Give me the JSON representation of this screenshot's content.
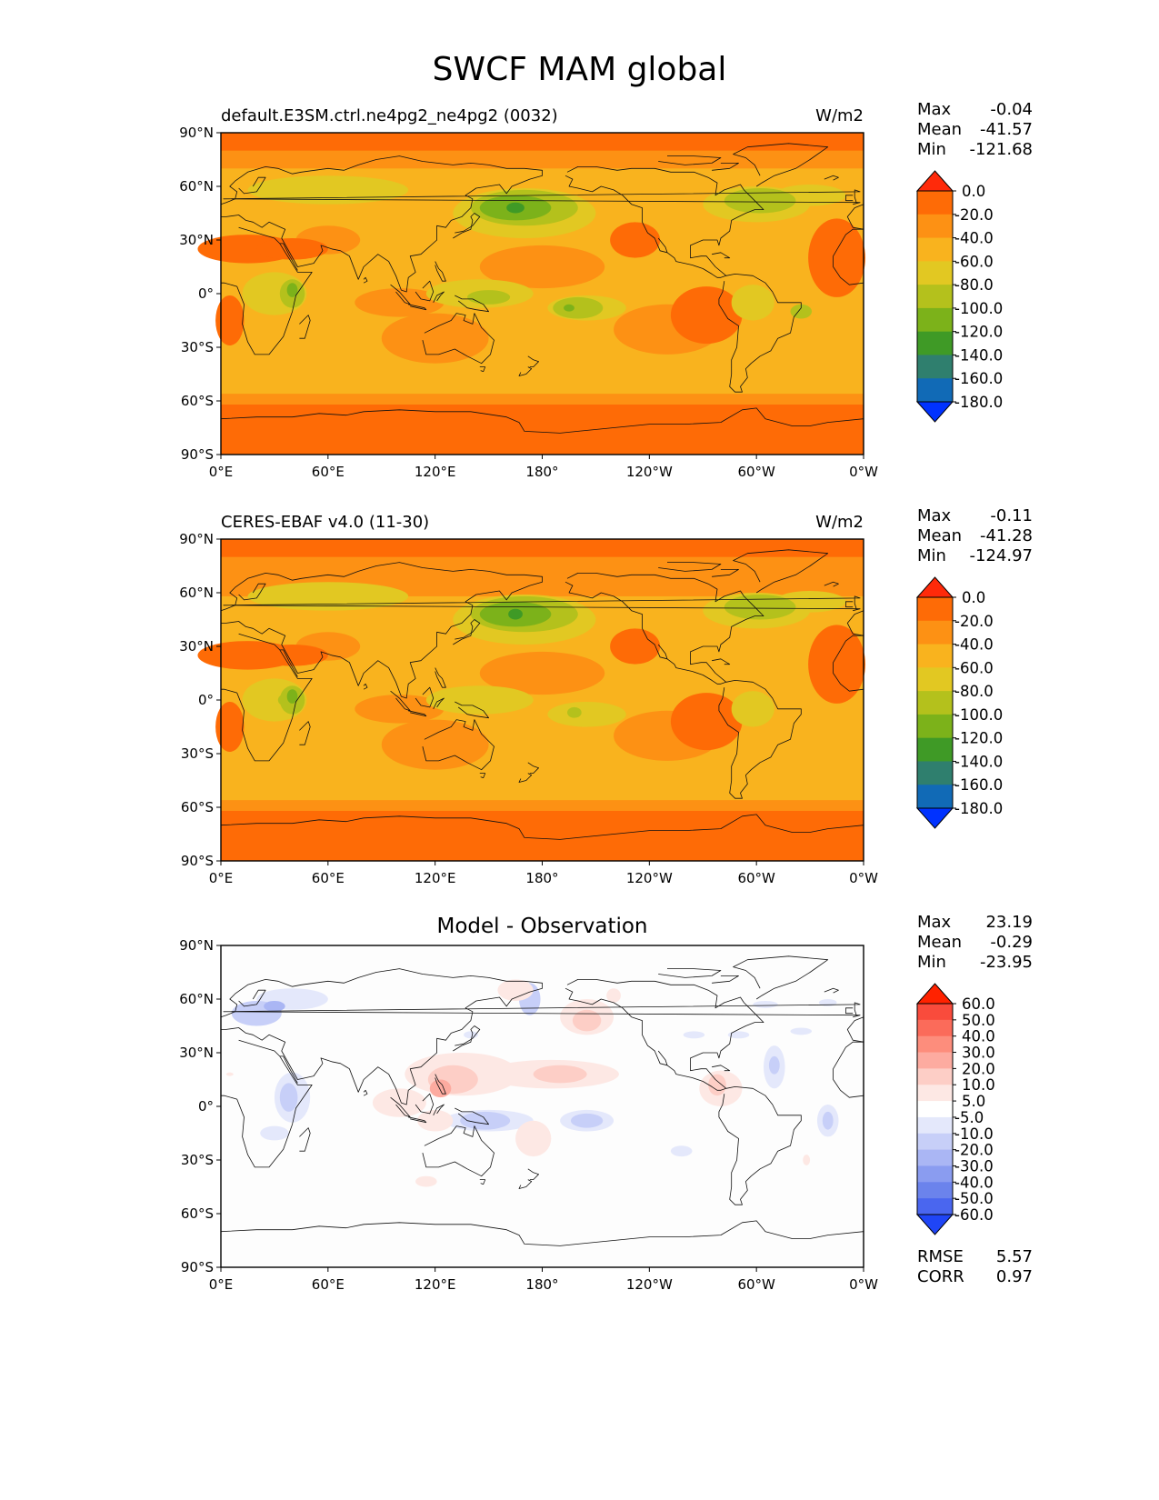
{
  "figure": {
    "title": "SWCF MAM global"
  },
  "panels": [
    {
      "id": "model",
      "left_title": "default.E3SM.ctrl.ne4pg2_ne4pg2 (0032)",
      "center_title": "",
      "units": "W/m2",
      "stats": [
        {
          "label": "Max",
          "value": "-0.04"
        },
        {
          "label": "Mean",
          "value": "-41.57"
        },
        {
          "label": "Min",
          "value": "-121.68"
        }
      ],
      "extra_stats": []
    },
    {
      "id": "obs",
      "left_title": "CERES-EBAF v4.0 (11-30)",
      "center_title": "",
      "units": "W/m2",
      "stats": [
        {
          "label": "Max",
          "value": "-0.11"
        },
        {
          "label": "Mean",
          "value": "-41.28"
        },
        {
          "label": "Min",
          "value": "-124.97"
        }
      ],
      "extra_stats": []
    },
    {
      "id": "diff",
      "left_title": "",
      "center_title": "Model - Observation",
      "units": "",
      "stats": [
        {
          "label": "Max",
          "value": "23.19"
        },
        {
          "label": "Mean",
          "value": "-0.29"
        },
        {
          "label": "Min",
          "value": "-23.95"
        }
      ],
      "extra_stats": [
        {
          "label": "RMSE",
          "value": "5.57"
        },
        {
          "label": "CORR",
          "value": "0.97"
        }
      ]
    }
  ],
  "map_axes": {
    "x_ticks": [
      "0°E",
      "60°E",
      "120°E",
      "180°",
      "120°W",
      "60°W",
      "0°W"
    ],
    "y_ticks": [
      "90°N",
      "60°N",
      "30°N",
      "0°",
      "30°S",
      "60°S",
      "90°S"
    ],
    "projection": "PlateCarree, central longitude 180"
  },
  "colorbars": {
    "field": {
      "labels": [
        "0.0",
        "-20.0",
        "-40.0",
        "-60.0",
        "-80.0",
        "-100.0",
        "-120.0",
        "-140.0",
        "-160.0",
        "-180.0"
      ],
      "colors": [
        "#ff2a0a",
        "#fe6b06",
        "#fd9114",
        "#f9b31e",
        "#e2c822",
        "#b4c11c",
        "#7cb21a",
        "#3f9a26",
        "#2f7f6e",
        "#116ab6",
        "#0032ff"
      ]
    },
    "diff": {
      "labels": [
        "60.0",
        "50.0",
        "40.0",
        "30.0",
        "20.0",
        "10.0",
        "5.0",
        "-5.0",
        "-10.0",
        "-20.0",
        "-30.0",
        "-40.0",
        "-50.0",
        "-60.0"
      ],
      "colors": [
        "#ff2200",
        "#f94b3c",
        "#fb6b5a",
        "#fd8d7c",
        "#fdaba0",
        "#fdcec6",
        "#fde8e4",
        "#ffffff",
        "#e4e8fb",
        "#c7cff8",
        "#aab6f4",
        "#8a9cf0",
        "#6b83ec",
        "#4a66ef",
        "#1f45f6"
      ]
    }
  },
  "chart_data": {
    "type": "heatmap",
    "title": "SWCF MAM global",
    "panels": [
      "default.E3SM.ctrl.ne4pg2_ne4pg2 (0032)",
      "CERES-EBAF v4.0 (11-30)",
      "Model - Observation"
    ],
    "units": "W/m2",
    "xlim": [
      0,
      360
    ],
    "ylim": [
      -90,
      90
    ],
    "x_ticks": [
      "0°E",
      "60°E",
      "120°E",
      "180°",
      "120°W",
      "60°W",
      "0°W"
    ],
    "y_ticks": [
      "90°N",
      "60°N",
      "30°N",
      "0°",
      "30°S",
      "60°S",
      "90°S"
    ],
    "field_levels": [
      0,
      -20,
      -40,
      -60,
      -80,
      -100,
      -120,
      -140,
      -160,
      -180
    ],
    "diff_levels": [
      60,
      50,
      40,
      30,
      20,
      10,
      5,
      -5,
      -10,
      -20,
      -30,
      -40,
      -50,
      -60
    ]
  }
}
